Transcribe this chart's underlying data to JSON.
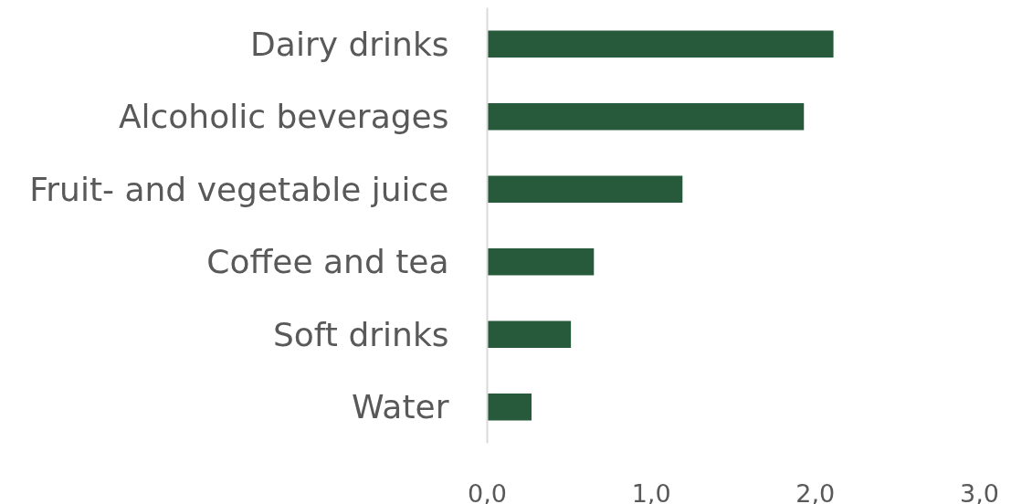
{
  "chart_data": {
    "type": "bar",
    "orientation": "horizontal",
    "categories": [
      "Dairy drinks",
      "Alcoholic beverages",
      "Fruit- and vegetable juice",
      "Coffee and tea",
      "Soft drinks",
      "Water"
    ],
    "values": [
      2.11,
      1.93,
      1.19,
      0.65,
      0.51,
      0.27
    ],
    "color": "#265a3a",
    "xlim": [
      0,
      3
    ],
    "xticks": [
      {
        "value": 0,
        "label": "0,0"
      },
      {
        "value": 1,
        "label": "1,0"
      },
      {
        "value": 2,
        "label": "2,0"
      },
      {
        "value": 3,
        "label": "3,0"
      }
    ],
    "grid": false
  }
}
